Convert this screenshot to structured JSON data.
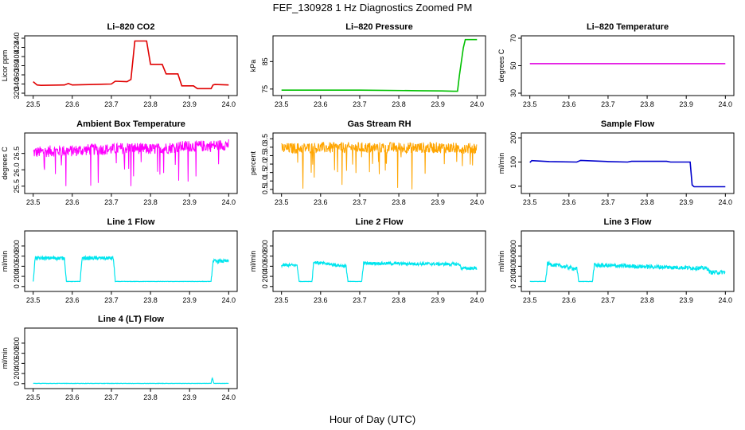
{
  "title": "FEF_130928  1 Hz Diagnostics Zoomed PM",
  "xlabel": "Hour of Day (UTC)",
  "colors": {
    "co2": "#e00000",
    "pressure": "#00c000",
    "temperature": "#e000e0",
    "ambient": "#ff00ff",
    "rh": "#ffa500",
    "sample": "#0000cc",
    "line_flow": "#00e5ee"
  },
  "chart_data": [
    {
      "type": "line",
      "title": "Li–820 CO2",
      "ylabel": "Licor ppm",
      "color": "#e00000",
      "xlim": [
        23.5,
        24.0
      ],
      "ylim": [
        320,
        440
      ],
      "xticks": [
        "23.5",
        "23.6",
        "23.7",
        "23.8",
        "23.9",
        "24.0"
      ],
      "yticks": [
        "320",
        "340",
        "360",
        "380",
        "400",
        "420",
        "440"
      ],
      "series": [
        {
          "x": [
            23.5,
            23.51,
            23.52,
            23.58,
            23.59,
            23.6,
            23.7,
            23.71,
            23.74,
            23.75,
            23.76,
            23.79,
            23.8,
            23.83,
            23.84,
            23.87,
            23.88,
            23.91,
            23.92,
            23.955,
            23.96,
            23.965,
            24.0
          ],
          "y": [
            345,
            338,
            337,
            338,
            341,
            338,
            340,
            346,
            345,
            350,
            434,
            434,
            383,
            383,
            362,
            362,
            336,
            336,
            330,
            330,
            338,
            339,
            338
          ]
        }
      ]
    },
    {
      "type": "line",
      "title": "Li–820 Pressure",
      "ylabel": "kPa",
      "color": "#00c000",
      "xlim": [
        23.5,
        24.0
      ],
      "ylim": [
        73.5,
        93.5
      ],
      "xticks": [
        "23.5",
        "23.6",
        "23.7",
        "23.8",
        "23.9",
        "24.0"
      ],
      "yticks": [
        "75",
        "85"
      ],
      "series": [
        {
          "x": [
            23.5,
            23.7,
            23.85,
            23.91,
            23.94,
            23.95,
            23.955,
            23.965,
            23.97,
            24.0
          ],
          "y": [
            74.6,
            74.6,
            74.4,
            74.3,
            74.2,
            74.2,
            80,
            90,
            93.0,
            93.0
          ]
        }
      ]
    },
    {
      "type": "line",
      "title": "Li–820 Temperature",
      "ylabel": "degrees C",
      "color": "#e000e0",
      "xlim": [
        23.5,
        24.0
      ],
      "ylim": [
        30,
        70
      ],
      "xticks": [
        "23.5",
        "23.6",
        "23.7",
        "23.8",
        "23.9",
        "24.0"
      ],
      "yticks": [
        "30",
        "50",
        "70"
      ],
      "series": [
        {
          "x": [
            23.5,
            24.0
          ],
          "y": [
            51.5,
            51.5
          ]
        }
      ]
    },
    {
      "type": "line",
      "title": "Ambient Box Temperature",
      "ylabel": "degrees C",
      "color": "#ff00ff",
      "xlim": [
        23.5,
        24.0
      ],
      "ylim": [
        25.35,
        27.05
      ],
      "xticks": [
        "23.5",
        "23.6",
        "23.7",
        "23.8",
        "23.9",
        "24.0"
      ],
      "yticks": [
        "25.5",
        "26.0",
        "26.5"
      ],
      "series": [
        {
          "x": [
            23.5,
            23.55,
            23.6,
            23.65,
            23.7,
            23.75,
            23.8,
            23.85,
            23.9,
            23.95,
            24.0
          ],
          "y": [
            26.5,
            26.55,
            26.55,
            26.6,
            26.6,
            26.65,
            26.6,
            26.65,
            26.7,
            26.7,
            26.75
          ],
          "noise_band": [
            -0.15,
            0.2
          ],
          "dip_min": [
            25.5,
            25.6,
            25.5,
            25.9,
            25.8
          ]
        }
      ]
    },
    {
      "type": "line",
      "title": "Gas Stream RH",
      "ylabel": "percent",
      "color": "#ffa500",
      "xlim": [
        23.5,
        24.0
      ],
      "ylim": [
        0.4,
        3.7
      ],
      "xticks": [
        "23.5",
        "23.6",
        "23.7",
        "23.8",
        "23.9",
        "24.0"
      ],
      "yticks": [
        "0.5",
        "1.0",
        "1.5",
        "2.0",
        "2.5",
        "3.0",
        "3.5"
      ],
      "series": [
        {
          "x": [
            23.5,
            23.6,
            23.7,
            23.8,
            23.9,
            24.0
          ],
          "y": [
            2.95,
            3.0,
            3.0,
            3.0,
            3.0,
            2.95
          ],
          "noise_band": [
            -0.35,
            0.3
          ],
          "dip_min": [
            1.2,
            1.6,
            1.4,
            0.5,
            2.0
          ]
        }
      ]
    },
    {
      "type": "line",
      "title": "Sample Flow",
      "ylabel": "ml/min",
      "color": "#0000cc",
      "xlim": [
        23.5,
        24.0
      ],
      "ylim": [
        -20,
        210
      ],
      "xticks": [
        "23.5",
        "23.6",
        "23.7",
        "23.8",
        "23.9",
        "24.0"
      ],
      "yticks": [
        "0",
        "100",
        "200"
      ],
      "series": [
        {
          "x": [
            23.5,
            23.505,
            23.55,
            23.62,
            23.63,
            23.7,
            23.75,
            23.76,
            23.85,
            23.86,
            23.91,
            23.915,
            23.92,
            24.0
          ],
          "y": [
            98,
            106,
            102,
            100,
            107,
            102,
            100,
            103,
            103,
            100,
            100,
            5,
            -2,
            -2
          ]
        }
      ]
    },
    {
      "type": "line",
      "title": "Line 1 Flow",
      "ylabel": "ml/min",
      "color": "#00e5ee",
      "xlim": [
        23.5,
        24.0
      ],
      "ylim": [
        -50,
        1050
      ],
      "xticks": [
        "23.5",
        "23.6",
        "23.7",
        "23.8",
        "23.9",
        "24.0"
      ],
      "yticks": [
        "0",
        "200",
        "400",
        "600",
        "800"
      ],
      "series": [
        {
          "x": [
            23.5,
            23.505,
            23.58,
            23.585,
            23.62,
            23.625,
            23.705,
            23.71,
            23.955,
            23.96,
            24.0
          ],
          "y": [
            100,
            560,
            560,
            100,
            100,
            560,
            560,
            100,
            100,
            500,
            500
          ],
          "noise": 35
        }
      ]
    },
    {
      "type": "line",
      "title": "Line 2 Flow",
      "ylabel": "ml/min",
      "color": "#00e5ee",
      "xlim": [
        23.5,
        24.0
      ],
      "ylim": [
        -50,
        1050
      ],
      "xticks": [
        "23.5",
        "23.6",
        "23.7",
        "23.8",
        "23.9",
        "24.0"
      ],
      "yticks": [
        "0",
        "200",
        "400",
        "600",
        "800"
      ],
      "series": [
        {
          "x": [
            23.5,
            23.54,
            23.545,
            23.578,
            23.582,
            23.665,
            23.67,
            23.705,
            23.71,
            23.955,
            23.96,
            24.0
          ],
          "y": [
            420,
            420,
            100,
            100,
            480,
            400,
            100,
            100,
            460,
            440,
            360,
            360
          ],
          "noise": 30
        }
      ]
    },
    {
      "type": "line",
      "title": "Line 3 Flow",
      "ylabel": "ml/min",
      "color": "#00e5ee",
      "xlim": [
        23.5,
        24.0
      ],
      "ylim": [
        -50,
        1050
      ],
      "xticks": [
        "23.5",
        "23.6",
        "23.7",
        "23.8",
        "23.9",
        "24.0"
      ],
      "yticks": [
        "0",
        "200",
        "400",
        "600",
        "800"
      ],
      "series": [
        {
          "x": [
            23.5,
            23.505,
            23.54,
            23.545,
            23.62,
            23.625,
            23.66,
            23.665,
            23.955,
            23.96,
            24.0
          ],
          "y": [
            100,
            100,
            100,
            450,
            350,
            100,
            100,
            420,
            360,
            280,
            280
          ],
          "noise": 40
        }
      ]
    },
    {
      "type": "line",
      "title": "Line 4 (LT) Flow",
      "ylabel": "ml/min",
      "color": "#00e5ee",
      "xlim": [
        23.5,
        24.0
      ],
      "ylim": [
        -50,
        1050
      ],
      "xticks": [
        "23.5",
        "23.6",
        "23.7",
        "23.8",
        "23.9",
        "24.0"
      ],
      "yticks": [
        "0",
        "200",
        "400",
        "600",
        "800"
      ],
      "series": [
        {
          "x": [
            23.5,
            23.955,
            23.958,
            23.962,
            24.0
          ],
          "y": [
            5,
            5,
            120,
            5,
            5
          ],
          "noise": 3
        }
      ]
    }
  ]
}
